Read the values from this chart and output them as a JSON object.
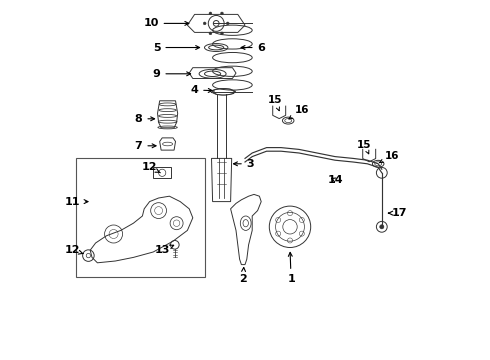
{
  "bg_color": "#ffffff",
  "line_color": "#333333",
  "label_color": "#000000",
  "arrow_color": "#000000",
  "font_size": 7.5,
  "label_font_size": 8
}
